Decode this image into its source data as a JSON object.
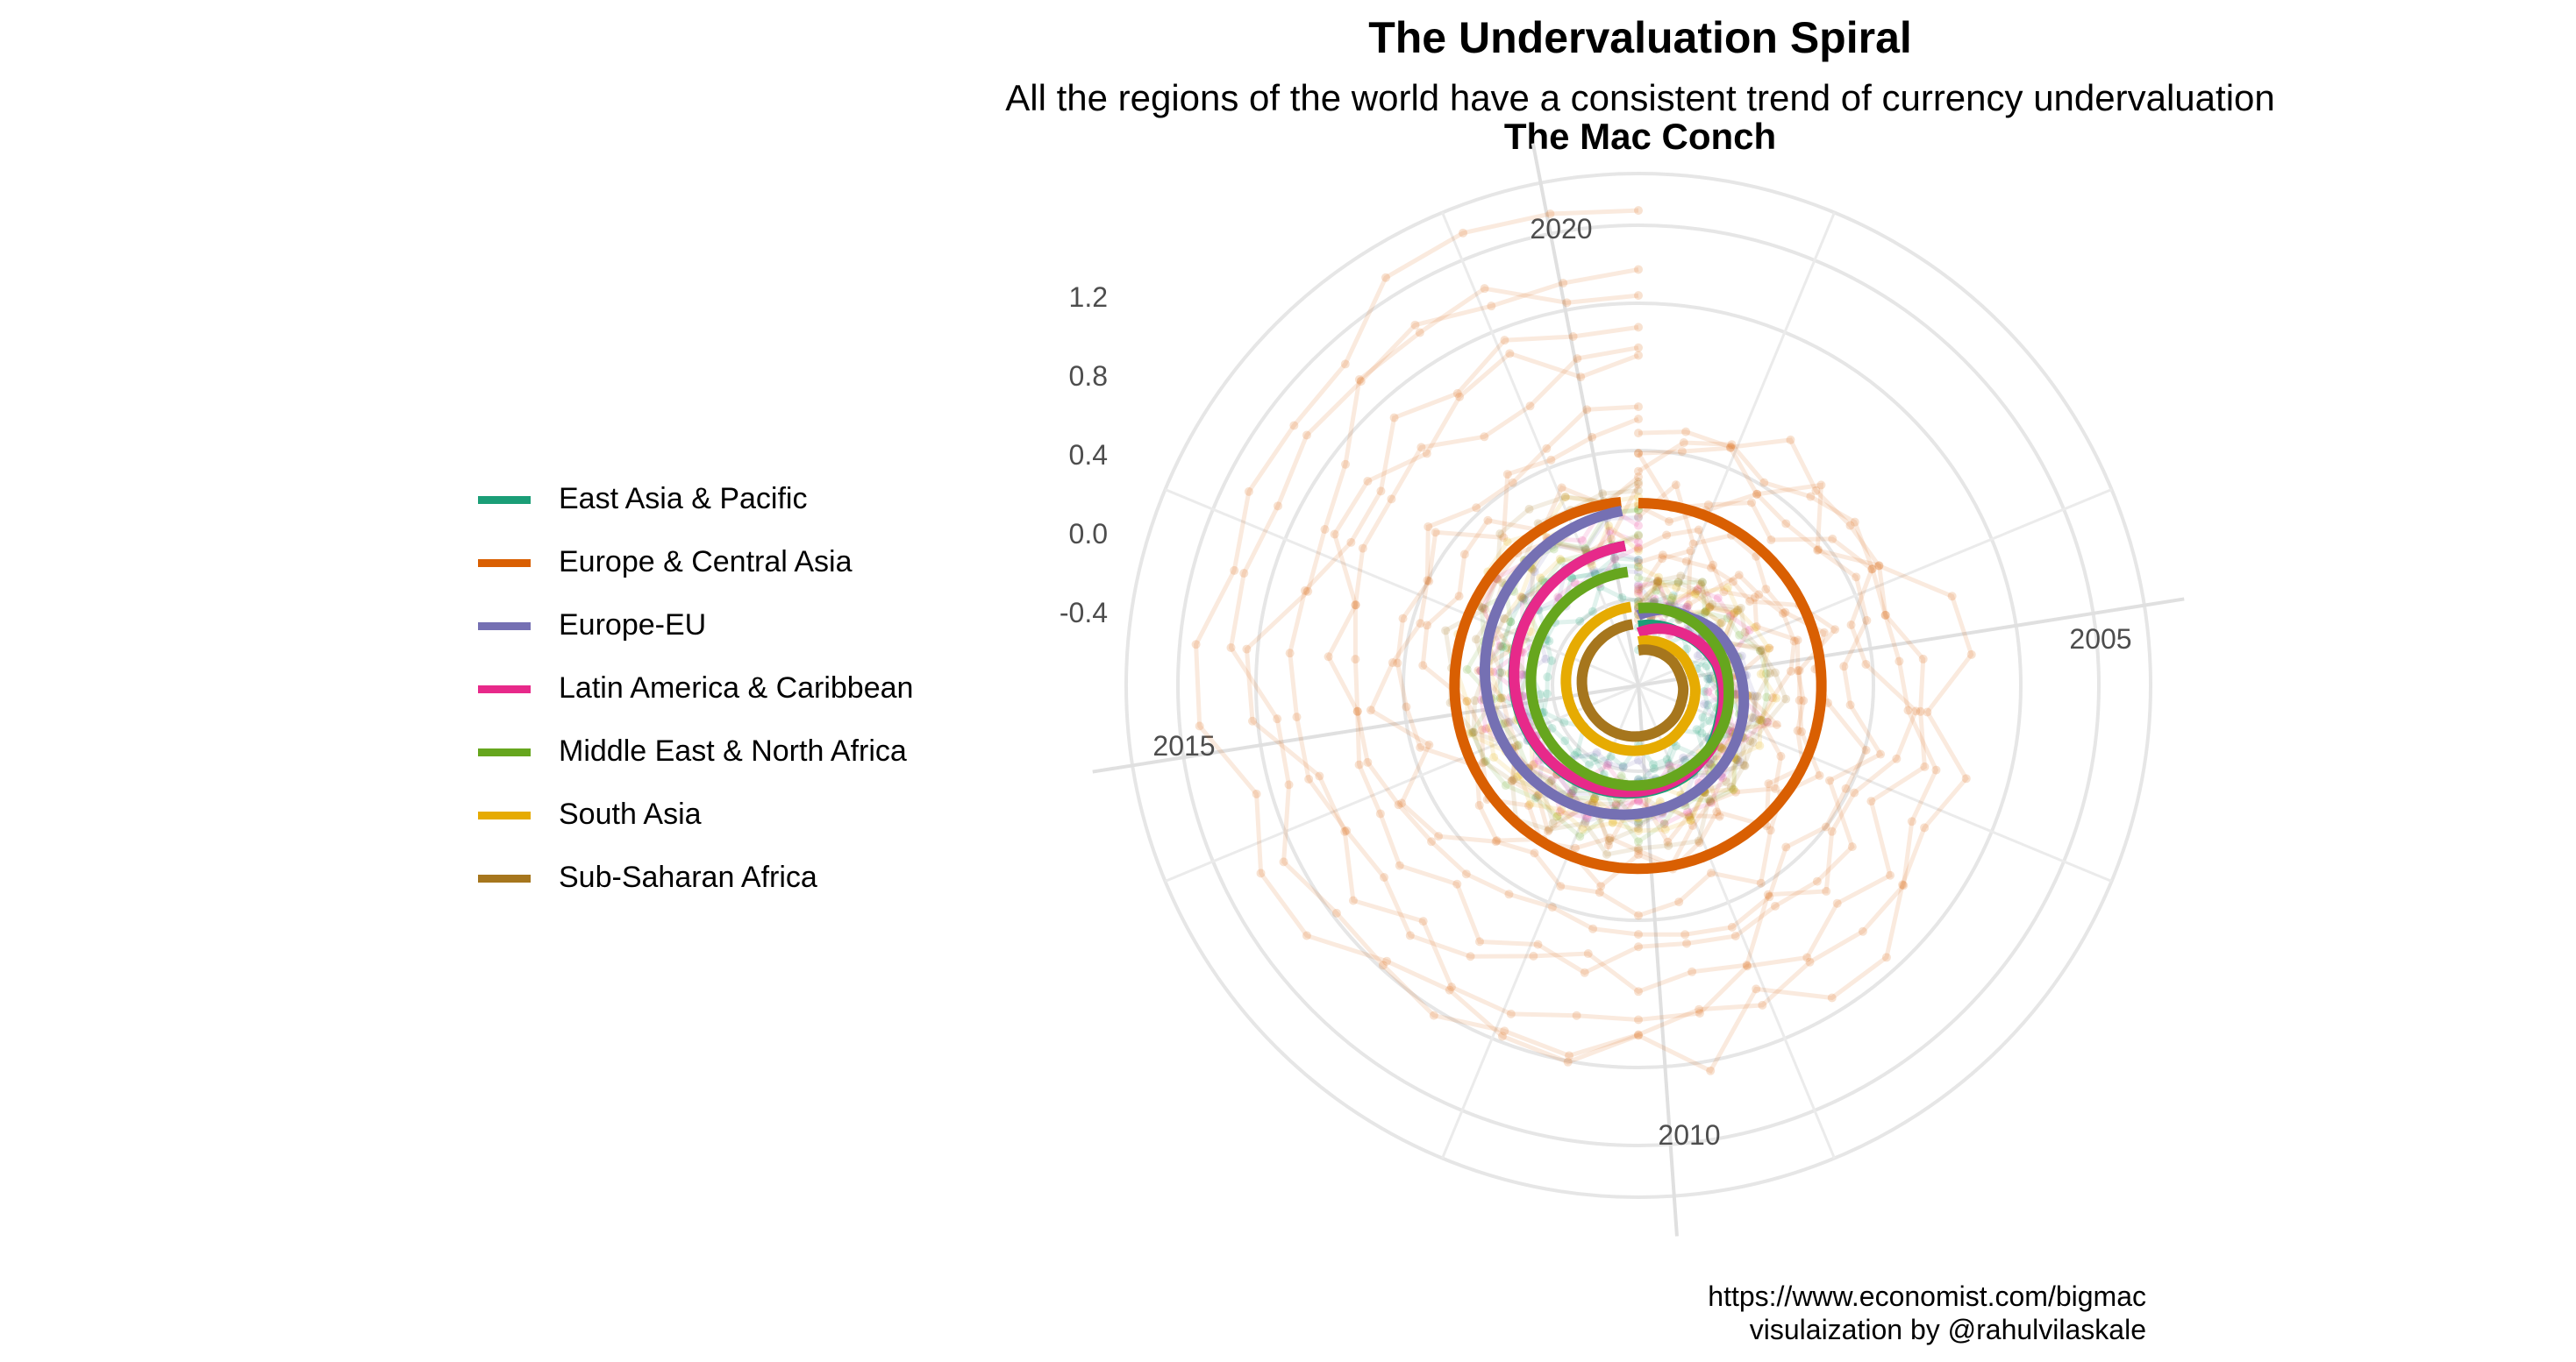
{
  "title": "The Undervaluation Spiral",
  "subtitle": "All the regions of the world have a consistent trend of currency undervaluation",
  "subtitle2": "The Mac Conch",
  "caption": {
    "line1": "https://www.economist.com/bigmac",
    "line2": "visulaization by @rahulvilaskale"
  },
  "chart_data": {
    "type": "line",
    "coord": "polar-spiral",
    "theta_ticks": [
      "2005",
      "2010",
      "2015",
      "2020"
    ],
    "r_ticks": [
      "1.2",
      "0.8",
      "0.4",
      "0.0",
      "-0.4"
    ],
    "grid": true,
    "legend_position": "left",
    "series": [
      {
        "name": "East Asia & Pacific",
        "color": "#1b9e77",
        "mean_values": [
          -0.05,
          -0.06,
          -0.07,
          -0.09,
          -0.11,
          -0.12,
          -0.13,
          -0.15,
          -0.17,
          -0.18,
          -0.19,
          -0.2,
          -0.21,
          -0.22,
          -0.23,
          -0.24,
          -0.25,
          -0.26,
          -0.27,
          -0.28
        ]
      },
      {
        "name": "Europe & Central Asia",
        "color": "#d95f02",
        "mean_values": [
          -0.05,
          -0.07,
          -0.09,
          -0.11,
          -0.13,
          -0.14,
          -0.16,
          -0.17,
          -0.18,
          -0.2,
          -0.21,
          -0.22,
          -0.23,
          -0.24,
          -0.25,
          -0.26,
          -0.27,
          -0.28,
          -0.29,
          -0.3
        ]
      },
      {
        "name": "Europe-EU",
        "color": "#7570b3",
        "mean_values": [
          0.0,
          -0.02,
          -0.03,
          -0.05,
          -0.06,
          -0.07,
          -0.08,
          -0.09,
          -0.1,
          -0.11,
          -0.12,
          -0.13,
          -0.14,
          -0.15,
          -0.16,
          -0.17,
          -0.18,
          -0.19,
          -0.2,
          -0.21
        ]
      },
      {
        "name": "Latin America & Caribbean",
        "color": "#e7298a",
        "mean_values": [
          -0.1,
          -0.12,
          -0.14,
          -0.16,
          -0.18,
          -0.19,
          -0.2,
          -0.22,
          -0.23,
          -0.24,
          -0.25,
          -0.26,
          -0.27,
          -0.28,
          -0.29,
          -0.3,
          -0.31,
          -0.32,
          -0.33,
          -0.34
        ]
      },
      {
        "name": "Middle East & North Africa",
        "color": "#66a61e",
        "mean_values": [
          -0.12,
          -0.14,
          -0.16,
          -0.18,
          -0.2,
          -0.21,
          -0.23,
          -0.24,
          -0.25,
          -0.27,
          -0.28,
          -0.29,
          -0.3,
          -0.31,
          -0.32,
          -0.33,
          -0.34,
          -0.35,
          -0.36,
          -0.37
        ]
      },
      {
        "name": "South Asia",
        "color": "#e6ab02",
        "mean_values": [
          -0.2,
          -0.22,
          -0.24,
          -0.26,
          -0.27,
          -0.29,
          -0.3,
          -0.31,
          -0.33,
          -0.34,
          -0.35,
          -0.36,
          -0.37,
          -0.38,
          -0.39,
          -0.4,
          -0.41,
          -0.42,
          -0.43,
          -0.44
        ]
      },
      {
        "name": "Sub-Saharan Africa",
        "color": "#a6761d",
        "mean_values": [
          -0.18,
          -0.2,
          -0.22,
          -0.24,
          -0.25,
          -0.27,
          -0.28,
          -0.3,
          -0.31,
          -0.32,
          -0.33,
          -0.34,
          -0.35,
          -0.36,
          -0.37,
          -0.38,
          -0.39,
          -0.4,
          -0.41,
          -0.42
        ]
      }
    ]
  }
}
